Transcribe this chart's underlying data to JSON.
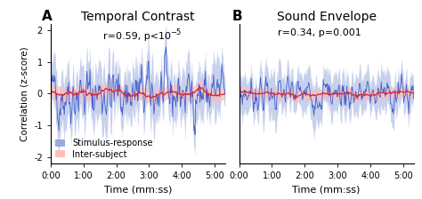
{
  "title_A": "Temporal Contrast",
  "title_B": "Sound Envelope",
  "label_A": "A",
  "label_B": "B",
  "annotation_B": "r=0.34, p=0.001",
  "xlabel": "Time (mm:ss)",
  "ylabel": "Correlation (z-score)",
  "ylim_A": [
    -2.2,
    2.2
  ],
  "ylim_B": [
    -2.2,
    2.2
  ],
  "xlim": [
    0,
    319
  ],
  "xtick_positions": [
    0,
    60,
    120,
    180,
    240,
    300
  ],
  "xtick_labels": [
    "0:00",
    "1:00",
    "2:00",
    "3:00",
    "4:00",
    "5:00"
  ],
  "ytick_A": [
    -2,
    -1,
    0,
    1,
    2
  ],
  "blue_line_color": "#3355cc",
  "blue_fill_color": "#99aadd",
  "red_line_color": "#dd2222",
  "red_fill_color": "#ffbbbb",
  "legend_labels": [
    "Stimulus-response",
    "Inter-subject"
  ],
  "background_color": "#ffffff",
  "n_points": 320,
  "title_fontsize": 10,
  "label_fontsize": 11,
  "annot_fontsize": 8,
  "tick_fontsize": 7,
  "legend_fontsize": 7
}
